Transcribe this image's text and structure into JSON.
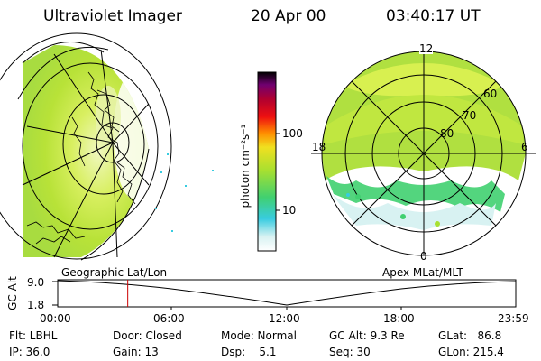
{
  "header": {
    "title": "Ultraviolet Imager",
    "date": "20 Apr 00",
    "time": "03:40:17 UT"
  },
  "colorbar": {
    "label": "photon cm⁻²s⁻¹",
    "ticks": [
      "100",
      "10"
    ]
  },
  "polar_plot": {
    "mlt_labels": [
      "12",
      "18",
      "6",
      "0"
    ],
    "lat_labels": [
      "60",
      "70",
      "80"
    ]
  },
  "panel_labels": {
    "left": "Geographic Lat/Lon",
    "right": "Apex MLat/MLT"
  },
  "timeline": {
    "ylabel": "GC Alt",
    "y_ticks": [
      "9.0",
      "1.8"
    ],
    "x_ticks": [
      "00:00",
      "06:00",
      "12:00",
      "18:00",
      "23:59"
    ],
    "marker_time": "03:40"
  },
  "info": {
    "flt": "Flt: LBHL",
    "ip": "IP: 36.0",
    "door": "Door: Closed",
    "gain": "Gain: 13",
    "mode": "Mode: Normal",
    "dsp": "Dsp:    5.1",
    "gc_alt": "GC Alt: 9.3 Re",
    "seq": "Seq: 30",
    "glat": "GLat:   86.8",
    "glon": "GLon: 215.4"
  },
  "colors": {
    "marker": "#cc0000"
  }
}
